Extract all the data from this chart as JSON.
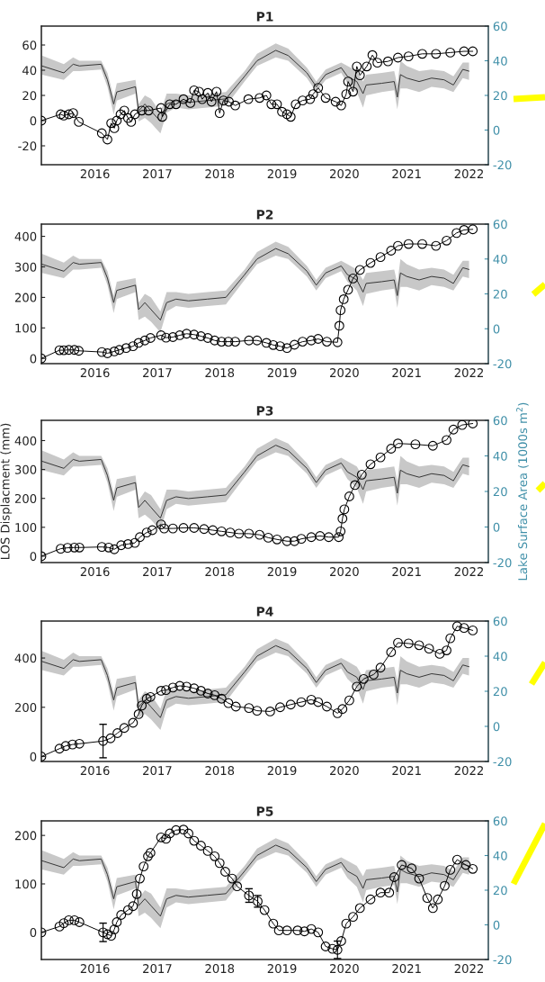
{
  "chart_data": [
    {
      "type": "line",
      "title": "P1",
      "xlim": [
        2015.14,
        2022.31
      ],
      "xticks": [
        2016,
        2017,
        2018,
        2019,
        2020,
        2021,
        2022
      ],
      "ylim": [
        -35,
        75
      ],
      "yticks": [
        -20,
        0,
        20,
        40,
        60
      ],
      "y2lim": [
        -20,
        60
      ],
      "y2ticks": [
        -20,
        0,
        20,
        40,
        60
      ],
      "grid": false,
      "series": [
        {
          "type": "line",
          "color": "#000000",
          "marker": "circle",
          "x": [
            2015.14,
            2015.45,
            2015.5,
            2015.58,
            2015.65,
            2015.74,
            2016.11,
            2016.2,
            2016.26,
            2016.31,
            2016.35,
            2016.41,
            2016.47,
            2016.53,
            2016.58,
            2016.64,
            2016.75,
            2016.86,
            2017.06,
            2017.08,
            2017.2,
            2017.3,
            2017.42,
            2017.53,
            2017.59,
            2017.67,
            2017.72,
            2017.81,
            2017.87,
            2017.95,
            2018.0,
            2018.06,
            2018.15,
            2018.25,
            2018.46,
            2018.64,
            2018.75,
            2018.83,
            2018.92,
            2019.0,
            2019.08,
            2019.14,
            2019.22,
            2019.33,
            2019.45,
            2019.5,
            2019.58,
            2019.7,
            2019.86,
            2019.95,
            2020.03,
            2020.06,
            2020.14,
            2020.2,
            2020.25,
            2020.36,
            2020.45,
            2020.53,
            2020.7,
            2020.86,
            2021.03,
            2021.25,
            2021.47,
            2021.7,
            2021.92,
            2022.06
          ],
          "values": [
            0,
            5,
            4,
            5,
            6,
            -1,
            -10,
            -15,
            -2,
            -6,
            0,
            5,
            8,
            2,
            -1,
            5,
            8,
            8,
            10,
            3,
            13,
            13,
            17,
            14,
            24,
            23,
            17,
            22,
            15,
            23,
            6,
            16,
            15,
            12,
            17,
            18,
            20,
            13,
            13,
            7,
            5,
            3,
            13,
            16,
            17,
            21,
            26,
            18,
            15,
            12,
            21,
            31,
            23,
            43,
            36,
            43,
            52,
            46,
            47,
            50,
            51,
            53,
            53,
            54,
            55,
            55
          ]
        },
        {
          "type": "line",
          "axis": "y2",
          "color": "#333333",
          "marker": "none",
          "x": [
            2015.15,
            2015.5,
            2015.65,
            2015.75,
            2016.1,
            2016.2,
            2016.3,
            2016.35,
            2016.65,
            2016.7,
            2016.8,
            2016.9,
            2017.05,
            2017.15,
            2017.3,
            2017.5,
            2017.8,
            2018.1,
            2018.4,
            2018.6,
            2018.9,
            2019.1,
            2019.4,
            2019.55,
            2019.7,
            2019.95,
            2020.05,
            2020.2,
            2020.3,
            2020.35,
            2020.6,
            2020.8,
            2020.85,
            2020.9,
            2021.0,
            2021.2,
            2021.4,
            2021.6,
            2021.75,
            2021.9,
            2022.0
          ],
          "values": [
            37,
            33,
            38,
            37,
            38,
            29,
            15,
            22,
            25,
            11,
            15,
            11,
            5,
            15,
            17,
            16,
            17,
            18,
            31,
            40,
            46,
            43,
            33,
            25,
            32,
            36,
            31,
            28,
            21,
            26,
            27,
            28,
            19,
            32,
            30,
            28,
            30,
            29,
            26,
            35,
            34
          ],
          "lower": [
            32,
            29,
            34,
            34,
            35,
            25,
            9,
            17,
            21,
            5,
            7,
            4,
            -2,
            10,
            13,
            12,
            13,
            14,
            28,
            37,
            42,
            40,
            30,
            22,
            29,
            33,
            27,
            22,
            13,
            20,
            22,
            23,
            12,
            24,
            24,
            22,
            25,
            24,
            22,
            30,
            29
          ],
          "upper": [
            43,
            38,
            42,
            40,
            40,
            33,
            19,
            27,
            29,
            15,
            20,
            18,
            10,
            21,
            21,
            20,
            21,
            22,
            34,
            44,
            50,
            47,
            36,
            28,
            35,
            39,
            37,
            34,
            28,
            32,
            33,
            34,
            26,
            40,
            37,
            34,
            35,
            34,
            31,
            39,
            39
          ]
        }
      ]
    },
    {
      "type": "line",
      "title": "P2",
      "xlim": [
        2015.14,
        2022.31
      ],
      "xticks": [
        2016,
        2017,
        2018,
        2019,
        2020,
        2021,
        2022
      ],
      "ylim": [
        -17,
        440
      ],
      "yticks": [
        0,
        100,
        200,
        300,
        400
      ],
      "y2lim": [
        -20,
        60
      ],
      "y2ticks": [
        -20,
        0,
        20,
        40,
        60
      ],
      "grid": false,
      "series": [
        {
          "type": "line",
          "color": "#000000",
          "marker": "circle",
          "x": [
            2015.14,
            2015.43,
            2015.5,
            2015.58,
            2015.67,
            2015.74,
            2016.11,
            2016.2,
            2016.31,
            2016.39,
            2016.5,
            2016.61,
            2016.7,
            2016.8,
            2016.89,
            2017.06,
            2017.14,
            2017.25,
            2017.36,
            2017.47,
            2017.59,
            2017.7,
            2017.81,
            2017.92,
            2018.03,
            2018.14,
            2018.25,
            2018.47,
            2018.6,
            2018.75,
            2018.86,
            2018.97,
            2019.08,
            2019.2,
            2019.33,
            2019.47,
            2019.58,
            2019.72,
            2019.89,
            2019.92,
            2019.94,
            2019.99,
            2020.06,
            2020.14,
            2020.25,
            2020.42,
            2020.58,
            2020.75,
            2020.86,
            2021.03,
            2021.25,
            2021.47,
            2021.64,
            2021.8,
            2021.92,
            2022.06
          ],
          "values": [
            0,
            27,
            27,
            28,
            28,
            25,
            21,
            17,
            23,
            28,
            34,
            40,
            51,
            59,
            67,
            76,
            68,
            70,
            76,
            81,
            78,
            73,
            67,
            59,
            55,
            55,
            55,
            59,
            59,
            51,
            44,
            40,
            34,
            45,
            55,
            59,
            64,
            55,
            53,
            107,
            158,
            194,
            225,
            262,
            290,
            313,
            332,
            353,
            369,
            375,
            375,
            369,
            386,
            411,
            421,
            423
          ]
        },
        {
          "type": "line",
          "axis": "y2",
          "color": "#333333",
          "marker": "none",
          "x": [
            2015.15,
            2015.5,
            2015.65,
            2015.75,
            2016.1,
            2016.2,
            2016.3,
            2016.35,
            2016.65,
            2016.7,
            2016.8,
            2016.9,
            2017.05,
            2017.15,
            2017.3,
            2017.5,
            2017.8,
            2018.1,
            2018.4,
            2018.6,
            2018.9,
            2019.1,
            2019.4,
            2019.55,
            2019.7,
            2019.95,
            2020.05,
            2020.2,
            2020.3,
            2020.35,
            2020.6,
            2020.8,
            2020.85,
            2020.9,
            2021.0,
            2021.2,
            2021.4,
            2021.6,
            2021.75,
            2021.9,
            2022.0
          ],
          "values": [
            37,
            33,
            38,
            37,
            38,
            29,
            15,
            22,
            25,
            11,
            15,
            11,
            5,
            15,
            17,
            16,
            17,
            18,
            31,
            40,
            46,
            43,
            33,
            25,
            32,
            36,
            31,
            28,
            21,
            26,
            27,
            28,
            19,
            32,
            30,
            28,
            30,
            29,
            26,
            35,
            34
          ],
          "lower": [
            32,
            29,
            34,
            34,
            35,
            25,
            9,
            17,
            21,
            5,
            7,
            4,
            -2,
            10,
            13,
            12,
            13,
            14,
            28,
            37,
            42,
            40,
            30,
            22,
            29,
            33,
            27,
            22,
            13,
            20,
            22,
            23,
            12,
            24,
            24,
            22,
            25,
            24,
            22,
            30,
            29
          ],
          "upper": [
            43,
            38,
            42,
            40,
            40,
            33,
            19,
            27,
            29,
            15,
            20,
            18,
            10,
            21,
            21,
            20,
            21,
            22,
            34,
            44,
            50,
            47,
            36,
            28,
            35,
            39,
            37,
            34,
            28,
            32,
            33,
            34,
            26,
            40,
            37,
            34,
            35,
            34,
            31,
            39,
            39
          ]
        }
      ]
    },
    {
      "type": "line",
      "title": "P3",
      "ylabel": "LOS Displacment (mm)",
      "y2label": "Lake Surface Area (1000s m$^{2}$)",
      "xlim": [
        2015.14,
        2022.31
      ],
      "xticks": [
        2016,
        2017,
        2018,
        2019,
        2020,
        2021,
        2022
      ],
      "ylim": [
        -22,
        470
      ],
      "yticks": [
        0,
        100,
        200,
        300,
        400
      ],
      "y2lim": [
        -20,
        60
      ],
      "y2ticks": [
        -20,
        0,
        20,
        40,
        60
      ],
      "grid": false,
      "series": [
        {
          "type": "line",
          "color": "#000000",
          "marker": "circle",
          "x": [
            2015.14,
            2015.45,
            2015.56,
            2015.67,
            2015.75,
            2016.11,
            2016.22,
            2016.31,
            2016.42,
            2016.53,
            2016.64,
            2016.72,
            2016.83,
            2016.92,
            2017.06,
            2017.11,
            2017.25,
            2017.42,
            2017.59,
            2017.75,
            2017.89,
            2018.03,
            2018.17,
            2018.31,
            2018.47,
            2018.64,
            2018.78,
            2018.92,
            2019.08,
            2019.2,
            2019.31,
            2019.47,
            2019.61,
            2019.75,
            2019.91,
            2019.94,
            2019.97,
            2020.0,
            2020.08,
            2020.17,
            2020.28,
            2020.42,
            2020.58,
            2020.75,
            2020.86,
            2021.14,
            2021.42,
            2021.64,
            2021.75,
            2021.89,
            2022.06
          ],
          "values": [
            0,
            26,
            29,
            30,
            30,
            32,
            30,
            24,
            38,
            42,
            46,
            66,
            82,
            90,
            110,
            96,
            96,
            98,
            98,
            94,
            90,
            86,
            82,
            78,
            78,
            74,
            64,
            58,
            52,
            52,
            60,
            66,
            70,
            66,
            66,
            86,
            130,
            162,
            207,
            246,
            282,
            318,
            342,
            372,
            390,
            387,
            382,
            402,
            438,
            454,
            459
          ]
        },
        {
          "type": "line",
          "axis": "y2",
          "color": "#333333",
          "marker": "none",
          "x": [
            2015.15,
            2015.5,
            2015.65,
            2015.75,
            2016.1,
            2016.2,
            2016.3,
            2016.35,
            2016.65,
            2016.7,
            2016.8,
            2016.9,
            2017.05,
            2017.15,
            2017.3,
            2017.5,
            2017.8,
            2018.1,
            2018.4,
            2018.6,
            2018.9,
            2019.1,
            2019.4,
            2019.55,
            2019.7,
            2019.95,
            2020.05,
            2020.2,
            2020.3,
            2020.35,
            2020.6,
            2020.8,
            2020.85,
            2020.9,
            2021.0,
            2021.2,
            2021.4,
            2021.6,
            2021.75,
            2021.9,
            2022.0
          ],
          "values": [
            37,
            33,
            38,
            37,
            38,
            29,
            15,
            22,
            25,
            11,
            15,
            11,
            5,
            15,
            17,
            16,
            17,
            18,
            31,
            40,
            46,
            43,
            33,
            25,
            32,
            36,
            31,
            28,
            21,
            26,
            27,
            28,
            19,
            32,
            30,
            28,
            30,
            29,
            26,
            35,
            34
          ],
          "lower": [
            32,
            29,
            34,
            34,
            35,
            25,
            9,
            17,
            21,
            5,
            7,
            4,
            -2,
            10,
            13,
            12,
            13,
            14,
            28,
            37,
            42,
            40,
            30,
            22,
            29,
            33,
            27,
            22,
            13,
            20,
            22,
            23,
            12,
            24,
            24,
            22,
            25,
            24,
            22,
            30,
            29
          ],
          "upper": [
            43,
            38,
            42,
            40,
            40,
            33,
            19,
            27,
            29,
            15,
            20,
            18,
            10,
            21,
            21,
            20,
            21,
            22,
            34,
            44,
            50,
            47,
            36,
            28,
            35,
            39,
            37,
            34,
            28,
            32,
            33,
            34,
            26,
            40,
            37,
            34,
            35,
            34,
            31,
            39,
            39
          ]
        }
      ]
    },
    {
      "type": "line",
      "title": "P4",
      "xlim": [
        2015.14,
        2022.31
      ],
      "xticks": [
        2016,
        2017,
        2018,
        2019,
        2020,
        2021,
        2022
      ],
      "ylim": [
        -20,
        550
      ],
      "yticks": [
        0,
        200,
        400
      ],
      "y2lim": [
        -20,
        60
      ],
      "y2ticks": [
        -20,
        0,
        20,
        40,
        60
      ],
      "grid": false,
      "series": [
        {
          "type": "line",
          "color": "#000000",
          "marker": "circle",
          "x": [
            2015.14,
            2015.43,
            2015.53,
            2015.64,
            2015.75,
            2016.13,
            2016.25,
            2016.36,
            2016.47,
            2016.61,
            2016.7,
            2016.75,
            2016.83,
            2016.89,
            2017.06,
            2017.14,
            2017.25,
            2017.36,
            2017.47,
            2017.59,
            2017.7,
            2017.81,
            2017.92,
            2018.03,
            2018.14,
            2018.26,
            2018.47,
            2018.6,
            2018.81,
            2018.97,
            2019.14,
            2019.31,
            2019.47,
            2019.58,
            2019.72,
            2019.89,
            2019.97,
            2020.08,
            2020.2,
            2020.31,
            2020.47,
            2020.58,
            2020.75,
            2020.86,
            2021.03,
            2021.2,
            2021.36,
            2021.53,
            2021.64,
            2021.7,
            2021.81,
            2021.92,
            2022.06
          ],
          "values": [
            0,
            32,
            43,
            49,
            52,
            63,
            74,
            95,
            116,
            137,
            172,
            207,
            235,
            242,
            267,
            270,
            280,
            287,
            284,
            277,
            267,
            256,
            249,
            235,
            217,
            203,
            197,
            186,
            183,
            200,
            211,
            221,
            231,
            221,
            203,
            176,
            193,
            228,
            284,
            315,
            333,
            361,
            424,
            462,
            459,
            452,
            438,
            417,
            431,
            480,
            529,
            522,
            512
          ],
          "errors": [
            null,
            null,
            null,
            null,
            null,
            68,
            null,
            null,
            null,
            null,
            null,
            null,
            null,
            null,
            null,
            null,
            null,
            null,
            null,
            null,
            null,
            null,
            null,
            null,
            null,
            null,
            null,
            null,
            null,
            null,
            null,
            null,
            null,
            null,
            null,
            null,
            null,
            null,
            null,
            null,
            null,
            null,
            null,
            null,
            null,
            null,
            null,
            null,
            null,
            null,
            null,
            null,
            null
          ]
        },
        {
          "type": "line",
          "axis": "y2",
          "color": "#333333",
          "marker": "none",
          "x": [
            2015.15,
            2015.5,
            2015.65,
            2015.75,
            2016.1,
            2016.2,
            2016.3,
            2016.35,
            2016.65,
            2016.7,
            2016.8,
            2016.9,
            2017.05,
            2017.15,
            2017.3,
            2017.5,
            2017.8,
            2018.1,
            2018.4,
            2018.6,
            2018.9,
            2019.1,
            2019.4,
            2019.55,
            2019.7,
            2019.95,
            2020.05,
            2020.2,
            2020.3,
            2020.35,
            2020.6,
            2020.8,
            2020.85,
            2020.9,
            2021.0,
            2021.2,
            2021.4,
            2021.6,
            2021.75,
            2021.9,
            2022.0
          ],
          "values": [
            37,
            33,
            38,
            37,
            38,
            29,
            15,
            22,
            25,
            11,
            15,
            11,
            5,
            15,
            17,
            16,
            17,
            18,
            31,
            40,
            46,
            43,
            33,
            25,
            32,
            36,
            31,
            28,
            21,
            26,
            27,
            28,
            19,
            32,
            30,
            28,
            30,
            29,
            26,
            35,
            34
          ],
          "lower": [
            32,
            29,
            34,
            34,
            35,
            25,
            9,
            17,
            21,
            5,
            7,
            4,
            -2,
            10,
            13,
            12,
            13,
            14,
            28,
            37,
            42,
            40,
            30,
            22,
            29,
            33,
            27,
            22,
            13,
            20,
            22,
            23,
            12,
            24,
            24,
            22,
            25,
            24,
            22,
            30,
            29
          ],
          "upper": [
            43,
            38,
            42,
            40,
            40,
            33,
            19,
            27,
            29,
            15,
            20,
            18,
            10,
            21,
            21,
            20,
            21,
            22,
            34,
            44,
            50,
            47,
            36,
            28,
            35,
            39,
            37,
            34,
            28,
            32,
            33,
            34,
            26,
            40,
            37,
            34,
            35,
            34,
            31,
            39,
            39
          ]
        }
      ]
    },
    {
      "type": "line",
      "title": "P5",
      "xlim": [
        2015.14,
        2022.31
      ],
      "xticks": [
        2016,
        2017,
        2018,
        2019,
        2020,
        2021,
        2022
      ],
      "ylim": [
        -56,
        230
      ],
      "yticks": [
        0,
        100,
        200
      ],
      "y2lim": [
        -20,
        60
      ],
      "y2ticks": [
        -20,
        0,
        20,
        40,
        60
      ],
      "grid": false,
      "series": [
        {
          "type": "line",
          "color": "#000000",
          "marker": "circle",
          "x": [
            2015.14,
            2015.43,
            2015.5,
            2015.58,
            2015.67,
            2015.75,
            2016.13,
            2016.2,
            2016.26,
            2016.31,
            2016.35,
            2016.42,
            2016.53,
            2016.61,
            2016.67,
            2016.72,
            2016.78,
            2016.85,
            2016.89,
            2017.06,
            2017.14,
            2017.2,
            2017.3,
            2017.42,
            2017.5,
            2017.59,
            2017.7,
            2017.81,
            2017.92,
            2018.0,
            2018.09,
            2018.2,
            2018.28,
            2018.47,
            2018.61,
            2018.72,
            2018.86,
            2018.95,
            2019.08,
            2019.25,
            2019.36,
            2019.47,
            2019.58,
            2019.7,
            2019.81,
            2019.89,
            2019.95,
            2020.03,
            2020.14,
            2020.25,
            2020.42,
            2020.58,
            2020.72,
            2020.8,
            2020.92,
            2021.08,
            2021.2,
            2021.33,
            2021.42,
            2021.5,
            2021.61,
            2021.7,
            2021.81,
            2021.95,
            2022.06
          ],
          "values": [
            0,
            12,
            19,
            25,
            25,
            21,
            0,
            -4,
            -7,
            6,
            21,
            36,
            46,
            54,
            79,
            111,
            136,
            157,
            164,
            196,
            193,
            204,
            211,
            212,
            204,
            189,
            179,
            168,
            157,
            143,
            125,
            111,
            95,
            76,
            64,
            46,
            18,
            4,
            4,
            4,
            2,
            7,
            0,
            -29,
            -34,
            -36,
            -18,
            18,
            32,
            50,
            68,
            82,
            82,
            114,
            139,
            132,
            111,
            71,
            50,
            68,
            96,
            129,
            150,
            139,
            131
          ],
          "errors": [
            null,
            null,
            null,
            null,
            null,
            null,
            19,
            null,
            null,
            null,
            null,
            null,
            null,
            null,
            null,
            null,
            null,
            null,
            null,
            null,
            null,
            null,
            null,
            null,
            null,
            null,
            null,
            null,
            null,
            null,
            null,
            null,
            null,
            14,
            12,
            null,
            null,
            null,
            null,
            null,
            null,
            null,
            null,
            null,
            null,
            18,
            null,
            null,
            null,
            null,
            null,
            null,
            null,
            null,
            null,
            null,
            null,
            null,
            null,
            null,
            null,
            null,
            null,
            null,
            null
          ]
        },
        {
          "type": "line",
          "axis": "y2",
          "color": "#333333",
          "marker": "none",
          "x": [
            2015.15,
            2015.5,
            2015.65,
            2015.75,
            2016.1,
            2016.2,
            2016.3,
            2016.35,
            2016.65,
            2016.7,
            2016.8,
            2016.9,
            2017.05,
            2017.15,
            2017.3,
            2017.5,
            2017.8,
            2018.1,
            2018.4,
            2018.6,
            2018.9,
            2019.1,
            2019.4,
            2019.55,
            2019.7,
            2019.95,
            2020.05,
            2020.2,
            2020.3,
            2020.35,
            2020.6,
            2020.8,
            2020.85,
            2020.9,
            2021.0,
            2021.2,
            2021.4,
            2021.6,
            2021.75,
            2021.9,
            2022.0
          ],
          "values": [
            37,
            33,
            38,
            37,
            38,
            29,
            15,
            22,
            25,
            11,
            15,
            11,
            5,
            15,
            17,
            16,
            17,
            18,
            31,
            40,
            46,
            43,
            33,
            25,
            32,
            36,
            31,
            28,
            21,
            26,
            27,
            28,
            19,
            32,
            30,
            28,
            30,
            29,
            26,
            35,
            34
          ],
          "lower": [
            32,
            29,
            34,
            34,
            35,
            25,
            9,
            17,
            21,
            5,
            7,
            4,
            -2,
            10,
            13,
            12,
            13,
            14,
            28,
            37,
            42,
            40,
            30,
            22,
            29,
            33,
            27,
            22,
            13,
            20,
            22,
            23,
            12,
            24,
            24,
            22,
            25,
            24,
            22,
            30,
            29
          ],
          "upper": [
            43,
            38,
            42,
            40,
            40,
            33,
            19,
            27,
            29,
            15,
            20,
            18,
            10,
            21,
            21,
            20,
            21,
            22,
            34,
            44,
            50,
            47,
            36,
            28,
            35,
            39,
            37,
            34,
            28,
            32,
            33,
            34,
            26,
            40,
            37,
            34,
            35,
            34,
            31,
            39,
            39
          ]
        }
      ]
    }
  ]
}
